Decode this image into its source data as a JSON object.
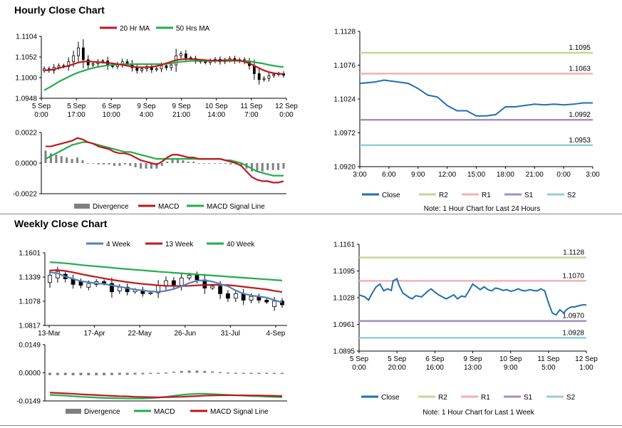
{
  "sections": {
    "hourly_title": "Hourly Close Chart",
    "weekly_title": "Weekly Close Chart"
  },
  "colors": {
    "red": "#c0161c",
    "green": "#1fae4c",
    "blue": "#4f81bd",
    "price": "#1f6fb2",
    "grey": "#808080",
    "r2": "#c3d69b",
    "r1": "#f2b2b2",
    "s1": "#a38fc2",
    "s2": "#93cddd",
    "candle": "#000000"
  },
  "chart_data": [
    {
      "id": "hourly-ma",
      "type": "candlestick",
      "title": "Hourly Close Chart",
      "legend": [
        "20 Hr MA",
        "50 Hrs MA"
      ],
      "y_ticks": [
        "1.1104",
        "1.1052",
        "1.1000",
        "1.0948"
      ],
      "ylim": [
        1.0948,
        1.1104
      ],
      "x_ticks": [
        [
          "5 Sep",
          "0:00"
        ],
        [
          "5 Sep",
          "17:00"
        ],
        [
          "6 Sep",
          "10:00"
        ],
        [
          "9 Sep",
          "4:00"
        ],
        [
          "9 Sep",
          "21:00"
        ],
        [
          "10 Sep",
          "14:00"
        ],
        [
          "11 Sep",
          "7:00"
        ],
        [
          "12 Sep",
          "0:00"
        ]
      ],
      "close": [
        1.1022,
        1.1018,
        1.1026,
        1.103,
        1.1028,
        1.104,
        1.1055,
        1.1075,
        1.1045,
        1.1032,
        1.1035,
        1.104,
        1.1042,
        1.103,
        1.1028,
        1.1033,
        1.104,
        1.1035,
        1.1025,
        1.1018,
        1.1022,
        1.1028,
        1.102,
        1.1022,
        1.103,
        1.1025,
        1.1032,
        1.1055,
        1.106,
        1.105,
        1.1048,
        1.1042,
        1.104,
        1.1038,
        1.1042,
        1.1046,
        1.104,
        1.1044,
        1.1048,
        1.1042,
        1.1045,
        1.104,
        1.103,
        1.101,
        1.0995,
        1.0998,
        1.1005,
        1.1008,
        1.101,
        1.1006
      ],
      "ma20": [
        1.1018,
        1.1019,
        1.1021,
        1.1024,
        1.1027,
        1.103,
        1.1034,
        1.1038,
        1.104,
        1.1041,
        1.104,
        1.1039,
        1.1038,
        1.1037,
        1.1036,
        1.1034,
        1.1032,
        1.103,
        1.1028,
        1.1026,
        1.1026,
        1.1026,
        1.1027,
        1.1029,
        1.1032,
        1.1036,
        1.104,
        1.1044,
        1.1046,
        1.1047,
        1.1047,
        1.1046,
        1.1045,
        1.1044,
        1.1043,
        1.1043,
        1.1043,
        1.1044,
        1.1044,
        1.1044,
        1.1043,
        1.104,
        1.1036,
        1.103,
        1.1024,
        1.1018,
        1.1014,
        1.1011,
        1.101,
        1.1009
      ],
      "ma50": [
        1.0968,
        1.0975,
        1.0982,
        1.099,
        1.0996,
        1.1002,
        1.1008,
        1.1013,
        1.1017,
        1.1021,
        1.1024,
        1.1027,
        1.1029,
        1.1031,
        1.1032,
        1.1033,
        1.1034,
        1.1034,
        1.1034,
        1.1034,
        1.1034,
        1.1034,
        1.1034,
        1.1034,
        1.1034,
        1.1035,
        1.1036,
        1.1038,
        1.104,
        1.1041,
        1.1042,
        1.1042,
        1.1042,
        1.1042,
        1.1042,
        1.1042,
        1.1042,
        1.1042,
        1.1042,
        1.1042,
        1.1042,
        1.1042,
        1.1041,
        1.1039,
        1.1037,
        1.1035,
        1.1032,
        1.103,
        1.1028,
        1.1027
      ]
    },
    {
      "id": "hourly-macd",
      "type": "line+bar",
      "y_ticks": [
        "0.0022",
        "0.0000",
        "-0.0022"
      ],
      "ylim": [
        -0.0022,
        0.0022
      ],
      "legend": [
        "Divergence",
        "MACD",
        "MACD Signal Line"
      ],
      "macd": [
        0.0012,
        0.0012,
        0.0013,
        0.0014,
        0.0015,
        0.0016,
        0.0018,
        0.0017,
        0.0015,
        0.0014,
        0.0012,
        0.0011,
        0.001,
        0.0008,
        0.0007,
        0.0007,
        0.0006,
        0.0004,
        0.0002,
        0.0001,
        0.0,
        -0.0001,
        0.0001,
        0.0004,
        0.0006,
        0.0006,
        0.0005,
        0.0004,
        0.0004,
        0.0003,
        0.0003,
        0.0003,
        0.0003,
        0.0003,
        0.0002,
        0.0001,
        0.0,
        -0.0002,
        -0.0006,
        -0.001,
        -0.0012,
        -0.0013,
        -0.0013,
        -0.0014,
        -0.0014,
        -0.0013
      ],
      "signal": [
        0.0003,
        0.0005,
        0.0007,
        0.0009,
        0.0011,
        0.0013,
        0.0014,
        0.0015,
        0.0015,
        0.0014,
        0.0013,
        0.0012,
        0.0011,
        0.001,
        0.0009,
        0.0008,
        0.0008,
        0.0007,
        0.0006,
        0.0005,
        0.0004,
        0.0003,
        0.0003,
        0.0003,
        0.0003,
        0.0003,
        0.0003,
        0.0003,
        0.0003,
        0.0003,
        0.0003,
        0.0003,
        0.0003,
        0.0003,
        0.0002,
        0.0002,
        0.0001,
        0.0,
        -0.0002,
        -0.0004,
        -0.0006,
        -0.0007,
        -0.0008,
        -0.0009,
        -0.0009,
        -0.0009
      ],
      "divergence": [
        0.0009,
        0.0007,
        0.0006,
        0.0005,
        0.0004,
        0.0003,
        0.0004,
        0.0002,
        0.0,
        0.0,
        -0.0001,
        -0.0001,
        -0.0001,
        -0.0002,
        -0.0002,
        -0.0001,
        -0.0002,
        -0.0003,
        -0.0004,
        -0.0004,
        -0.0004,
        -0.0004,
        -0.0002,
        0.0001,
        0.0003,
        0.0003,
        0.0002,
        0.0001,
        0.0001,
        0.0,
        0.0,
        0.0,
        0.0,
        0.0,
        0.0,
        -0.0001,
        -0.0001,
        -0.0002,
        -0.0004,
        -0.0006,
        -0.0006,
        -0.0006,
        -0.0005,
        -0.0005,
        -0.0005,
        -0.0004
      ]
    },
    {
      "id": "hourly-pivots",
      "type": "line",
      "y_ticks": [
        "1.1128",
        "1.1076",
        "1.1024",
        "1.0972",
        "1.0920"
      ],
      "ylim": [
        1.092,
        1.1128
      ],
      "x_ticks": [
        "3:00",
        "6:00",
        "9:00",
        "12:00",
        "15:00",
        "18:00",
        "21:00",
        "0:00",
        "3:00"
      ],
      "x_range": [
        0,
        24
      ],
      "close": [
        [
          0,
          1.1048
        ],
        [
          1.5,
          1.105
        ],
        [
          2.5,
          1.1053
        ],
        [
          4,
          1.105
        ],
        [
          5,
          1.1048
        ],
        [
          6,
          1.104
        ],
        [
          7,
          1.103
        ],
        [
          8,
          1.1027
        ],
        [
          9,
          1.1014
        ],
        [
          10,
          1.1006
        ],
        [
          11,
          1.1006
        ],
        [
          12,
          1.0998
        ],
        [
          13,
          1.0998
        ],
        [
          14,
          1.1
        ],
        [
          15,
          1.1012
        ],
        [
          16,
          1.1012
        ],
        [
          17,
          1.1014
        ],
        [
          18,
          1.1016
        ],
        [
          19,
          1.1015
        ],
        [
          20,
          1.1016
        ],
        [
          21,
          1.1015
        ],
        [
          22,
          1.1016
        ],
        [
          23,
          1.1018
        ],
        [
          24,
          1.1018
        ]
      ],
      "levels": {
        "R2": 1.1095,
        "R1": 1.1063,
        "S1": 1.0992,
        "S2": 1.0953
      },
      "level_labels": [
        "1.1095",
        "1.1063",
        "1.0992",
        "1.0953"
      ],
      "legend": [
        "Close",
        "R2",
        "R1",
        "S1",
        "S2"
      ],
      "note": "Note: 1 Hour Chart for Last 24 Hours"
    },
    {
      "id": "weekly-ma",
      "type": "candlestick",
      "title": "Weekly Close Chart",
      "legend": [
        "4 Week",
        "13 Week",
        "40 Week"
      ],
      "y_ticks": [
        "1.1601",
        "1.1339",
        "1.1078",
        "1.0817"
      ],
      "ylim": [
        1.0817,
        1.1601
      ],
      "x_ticks": [
        "13-Mar",
        "17-Apr",
        "22-May",
        "26-Jun",
        "31-Jul",
        "4-Sep"
      ],
      "candles": [
        [
          1.128,
          1.136
        ],
        [
          1.133,
          1.14
        ],
        [
          1.137,
          1.132
        ],
        [
          1.132,
          1.126
        ],
        [
          1.129,
          1.125
        ],
        [
          1.123,
          1.127
        ],
        [
          1.126,
          1.129
        ],
        [
          1.129,
          1.127
        ],
        [
          1.127,
          1.118
        ],
        [
          1.119,
          1.123
        ],
        [
          1.123,
          1.118
        ],
        [
          1.118,
          1.12
        ],
        [
          1.12,
          1.116
        ],
        [
          1.116,
          1.117
        ],
        [
          1.117,
          1.125
        ],
        [
          1.124,
          1.13
        ],
        [
          1.13,
          1.125
        ],
        [
          1.125,
          1.133
        ],
        [
          1.133,
          1.136
        ],
        [
          1.136,
          1.131
        ],
        [
          1.131,
          1.122
        ],
        [
          1.122,
          1.124
        ],
        [
          1.124,
          1.116
        ],
        [
          1.116,
          1.111
        ],
        [
          1.111,
          1.116
        ],
        [
          1.116,
          1.109
        ],
        [
          1.109,
          1.113
        ],
        [
          1.113,
          1.109
        ],
        [
          1.109,
          1.107
        ],
        [
          1.102,
          1.108
        ],
        [
          1.108,
          1.104
        ]
      ],
      "ma4": [
        1.139,
        1.138,
        1.1345,
        1.132,
        1.1295,
        1.1285,
        1.127,
        1.1265,
        1.125,
        1.1235,
        1.122,
        1.1205,
        1.1195,
        1.1185,
        1.118,
        1.119,
        1.121,
        1.124,
        1.1275,
        1.13,
        1.1305,
        1.129,
        1.1265,
        1.124,
        1.1195,
        1.116,
        1.114,
        1.113,
        1.1118,
        1.109,
        1.1065
      ],
      "ma13": [
        1.141,
        1.1415,
        1.1405,
        1.139,
        1.1372,
        1.1355,
        1.134,
        1.1325,
        1.131,
        1.1298,
        1.1285,
        1.1275,
        1.1265,
        1.1258,
        1.125,
        1.1245,
        1.1243,
        1.1242,
        1.1245,
        1.125,
        1.1253,
        1.1255,
        1.1255,
        1.1252,
        1.1245,
        1.1235,
        1.1225,
        1.1215,
        1.1205,
        1.119,
        1.1178
      ],
      "ma40": [
        1.15,
        1.1495,
        1.1488,
        1.148,
        1.147,
        1.1462,
        1.1455,
        1.1448,
        1.144,
        1.1432,
        1.1425,
        1.1418,
        1.1412,
        1.1405,
        1.1398,
        1.1392,
        1.1386,
        1.138,
        1.1374,
        1.1368,
        1.1362,
        1.1356,
        1.135,
        1.1344,
        1.1338,
        1.1332,
        1.1326,
        1.132,
        1.1314,
        1.1308,
        1.1302
      ]
    },
    {
      "id": "weekly-macd",
      "type": "line+bar",
      "y_ticks": [
        "0.0149",
        "0.0000",
        "-0.0149"
      ],
      "ylim": [
        -0.0149,
        0.0149
      ],
      "legend": [
        "Divergence",
        "MACD",
        "MACD Signal Line"
      ],
      "macd": [
        -0.0117,
        -0.0119,
        -0.0121,
        -0.0124,
        -0.0127,
        -0.0129,
        -0.0131,
        -0.0133,
        -0.0134,
        -0.0135,
        -0.0136,
        -0.0136,
        -0.0136,
        -0.0134,
        -0.0131,
        -0.0127,
        -0.0122,
        -0.0117,
        -0.0113,
        -0.0111,
        -0.0111,
        -0.0113,
        -0.0115,
        -0.0117,
        -0.0119,
        -0.0121,
        -0.0123,
        -0.0124,
        -0.0126,
        -0.0128,
        -0.0129
      ],
      "signal": [
        -0.0105,
        -0.0107,
        -0.0109,
        -0.0111,
        -0.0114,
        -0.0116,
        -0.0118,
        -0.012,
        -0.0122,
        -0.0124,
        -0.0125,
        -0.0127,
        -0.0128,
        -0.0129,
        -0.013,
        -0.0129,
        -0.0128,
        -0.0127,
        -0.0125,
        -0.0123,
        -0.0121,
        -0.012,
        -0.0119,
        -0.0119,
        -0.0119,
        -0.0119,
        -0.012,
        -0.012,
        -0.0121,
        -0.0122,
        -0.0123
      ],
      "divergence": [
        -0.0012,
        -0.0012,
        -0.0012,
        -0.0013,
        -0.0013,
        -0.0013,
        -0.0013,
        -0.0013,
        -0.0012,
        -0.0011,
        -0.0011,
        -0.0009,
        -0.0008,
        -0.0005,
        -0.0001,
        0.0002,
        0.0006,
        0.001,
        0.0012,
        0.0012,
        0.001,
        0.0007,
        0.0004,
        0.0002,
        0.0,
        -0.0002,
        -0.0003,
        -0.0004,
        -0.0005,
        -0.0006,
        -0.0006
      ]
    },
    {
      "id": "weekly-pivots",
      "type": "line",
      "y_ticks": [
        "1.1161",
        "1.1095",
        "1.1028",
        "1.0961",
        "1.0895"
      ],
      "ylim": [
        1.0895,
        1.1161
      ],
      "x_ticks": [
        [
          "5 Sep",
          "0:00"
        ],
        [
          "5 Sep",
          "20:00"
        ],
        [
          "6 Sep",
          "16:00"
        ],
        [
          "9 Sep",
          "13:00"
        ],
        [
          "10 Sep",
          "9:00"
        ],
        [
          "11 Sep",
          "5:00"
        ],
        [
          "12 Sep",
          "1:00"
        ]
      ],
      "x_range": [
        0,
        120
      ],
      "close": [
        [
          0,
          1.1035
        ],
        [
          3,
          1.103
        ],
        [
          5,
          1.1022
        ],
        [
          7,
          1.104
        ],
        [
          9,
          1.1055
        ],
        [
          11,
          1.1062
        ],
        [
          13,
          1.1045
        ],
        [
          15,
          1.105
        ],
        [
          17,
          1.1046
        ],
        [
          18,
          1.107
        ],
        [
          20,
          1.1075
        ],
        [
          21,
          1.106
        ],
        [
          23,
          1.104
        ],
        [
          26,
          1.103
        ],
        [
          28,
          1.1025
        ],
        [
          30,
          1.1033
        ],
        [
          33,
          1.103
        ],
        [
          36,
          1.1043
        ],
        [
          38,
          1.105
        ],
        [
          40,
          1.1042
        ],
        [
          42,
          1.1035
        ],
        [
          44,
          1.103
        ],
        [
          46,
          1.1025
        ],
        [
          48,
          1.103
        ],
        [
          50,
          1.1035
        ],
        [
          52,
          1.1025
        ],
        [
          54,
          1.1032
        ],
        [
          56,
          1.103
        ],
        [
          58,
          1.1045
        ],
        [
          60,
          1.1062
        ],
        [
          62,
          1.1055
        ],
        [
          64,
          1.1048
        ],
        [
          66,
          1.1055
        ],
        [
          68,
          1.1048
        ],
        [
          70,
          1.1045
        ],
        [
          72,
          1.1052
        ],
        [
          74,
          1.105
        ],
        [
          76,
          1.1046
        ],
        [
          78,
          1.1048
        ],
        [
          80,
          1.1044
        ],
        [
          82,
          1.1046
        ],
        [
          84,
          1.105
        ],
        [
          86,
          1.1046
        ],
        [
          88,
          1.1045
        ],
        [
          90,
          1.1048
        ],
        [
          92,
          1.1046
        ],
        [
          94,
          1.1045
        ],
        [
          96,
          1.105
        ],
        [
          98,
          1.1045
        ],
        [
          100,
          1.1015
        ],
        [
          102,
          1.099
        ],
        [
          104,
          1.0985
        ],
        [
          106,
          1.0998
        ],
        [
          108,
          1.099
        ],
        [
          110,
          1.1
        ],
        [
          112,
          1.1005
        ],
        [
          114,
          1.1005
        ],
        [
          116,
          1.1008
        ],
        [
          118,
          1.101
        ],
        [
          120,
          1.101
        ]
      ],
      "levels": {
        "R2": 1.1128,
        "R1": 1.107,
        "S1": 1.097,
        "S2": 1.0928
      },
      "level_labels": [
        "1.1128",
        "1.1070",
        "1.0970",
        "1.0928"
      ],
      "legend": [
        "Close",
        "R2",
        "R1",
        "S1",
        "S2"
      ],
      "note": "Note: 1 Hour Chart for Last 1 Week"
    }
  ]
}
